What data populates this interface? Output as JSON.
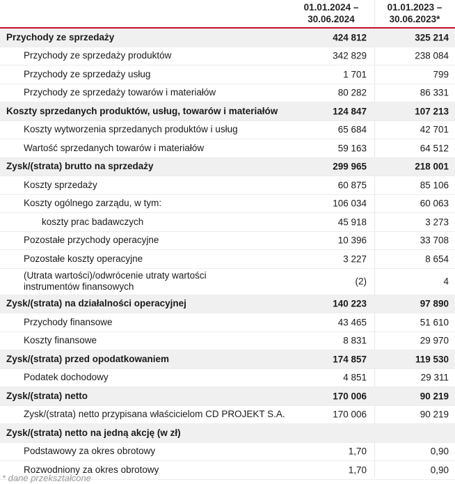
{
  "header": {
    "col1": [
      "01.01.2024 –",
      "30.06.2024"
    ],
    "col2": [
      "01.01.2023 –",
      "30.06.2023*"
    ]
  },
  "rows": [
    {
      "label": "Przychody ze sprzedaży",
      "v1": "424 812",
      "v2": "325 214",
      "style": "bold"
    },
    {
      "label": "Przychody ze sprzedaży produktów",
      "v1": "342 829",
      "v2": "238 084",
      "style": "l1"
    },
    {
      "label": "Przychody ze sprzedaży usług",
      "v1": "1 701",
      "v2": "799",
      "style": "l1"
    },
    {
      "label": "Przychody ze sprzedaży towarów i materiałów",
      "v1": "80 282",
      "v2": "86 331",
      "style": "l1"
    },
    {
      "label": "Koszty sprzedanych produktów, usług, towarów i materiałów",
      "v1": "124 847",
      "v2": "107 213",
      "style": "bold"
    },
    {
      "label": "Koszty wytworzenia sprzedanych produktów i usług",
      "v1": "65 684",
      "v2": "42 701",
      "style": "l1"
    },
    {
      "label": "Wartość sprzedanych towarów i materiałów",
      "v1": "59 163",
      "v2": "64 512",
      "style": "l1"
    },
    {
      "label": "Zysk/(strata) brutto na sprzedaży",
      "v1": "299 965",
      "v2": "218 001",
      "style": "bold"
    },
    {
      "label": "Koszty sprzedaży",
      "v1": "60 875",
      "v2": "85 106",
      "style": "l1"
    },
    {
      "label": "Koszty ogólnego zarządu, w tym:",
      "v1": "106 034",
      "v2": "60 063",
      "style": "l1"
    },
    {
      "label": "koszty prac badawczych",
      "v1": "45 918",
      "v2": "3 273",
      "style": "l2"
    },
    {
      "label": "Pozostałe przychody operacyjne",
      "v1": "10 396",
      "v2": "33 708",
      "style": "l1"
    },
    {
      "label": "Pozostałe koszty operacyjne",
      "v1": "3 227",
      "v2": "8 654",
      "style": "l1"
    },
    {
      "label": "(Utrata wartości)/odwrócenie utraty wartości\ninstrumentów finansowych",
      "v1": "(2)",
      "v2": "4",
      "style": "l1 dbl"
    },
    {
      "label": "Zysk/(strata) na działalności operacyjnej",
      "v1": "140 223",
      "v2": "97 890",
      "style": "bold"
    },
    {
      "label": "Przychody finansowe",
      "v1": "43 465",
      "v2": "51 610",
      "style": "l1"
    },
    {
      "label": "Koszty finansowe",
      "v1": "8 831",
      "v2": "29 970",
      "style": "l1"
    },
    {
      "label": "Zysk/(strata) przed opodatkowaniem",
      "v1": "174 857",
      "v2": "119 530",
      "style": "bold"
    },
    {
      "label": "Podatek dochodowy",
      "v1": "4 851",
      "v2": "29 311",
      "style": "l1"
    },
    {
      "label": "Zysk/(strata) netto",
      "v1": "170 006",
      "v2": "90 219",
      "style": "bold"
    },
    {
      "label": "Zysk/(strata) netto przypisana właścicielom CD PROJEKT S.A.",
      "v1": "170 006",
      "v2": "90 219",
      "style": "l1"
    },
    {
      "label": "Zysk/(strata) netto na jedną akcję (w zł)",
      "v1": "",
      "v2": "",
      "style": "bold"
    },
    {
      "label": "Podstawowy za okres obrotowy",
      "v1": "1,70",
      "v2": "0,90",
      "style": "l1"
    },
    {
      "label": "Rozwodniony za okres obrotowy",
      "v1": "1,70",
      "v2": "0,90",
      "style": "l1"
    }
  ],
  "footnote": "* dane przekształcone"
}
